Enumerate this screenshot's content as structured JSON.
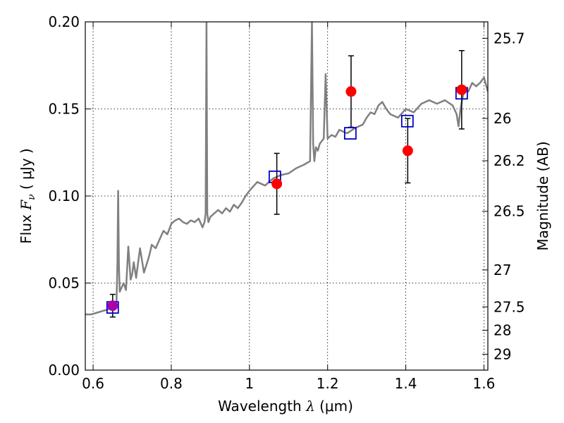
{
  "chart_data": {
    "type": "line",
    "xlabel": "Wavelength",
    "xlabel_symbol": "λ",
    "xlabel_unit": "(μm)",
    "ylabel": "Flux",
    "ylabel_symbol": "F",
    "ylabel_subscript": "ν",
    "ylabel_unit": "( μJy )",
    "y2label": "Magnitude (AB)",
    "xlim": [
      0.58,
      1.61
    ],
    "ylim": [
      0.0,
      0.2
    ],
    "grid": true,
    "x_ticks": [
      0.6,
      0.8,
      1.0,
      1.2,
      1.4,
      1.6
    ],
    "x_tick_labels": [
      "0.6",
      "0.8",
      "1",
      "1.2",
      "1.4",
      "1.6"
    ],
    "y_ticks": [
      0.0,
      0.05,
      0.1,
      0.15,
      0.2
    ],
    "y_tick_labels": [
      "0.00",
      "0.05",
      "0.10",
      "0.15",
      "0.20"
    ],
    "y2_ticks": [
      25.7,
      26,
      26.2,
      26.5,
      27,
      27.5,
      28,
      29
    ],
    "y2_tick_labels": [
      "25.7",
      "26",
      "26.2",
      "26.5",
      "27",
      "27.5",
      "28",
      "29"
    ],
    "series": [
      {
        "style": "line",
        "color": "#808080",
        "x": [
          0.58,
          0.595,
          0.61,
          0.625,
          0.64,
          0.65,
          0.655,
          0.66,
          0.662,
          0.664,
          0.666,
          0.668,
          0.672,
          0.678,
          0.684,
          0.69,
          0.696,
          0.7,
          0.704,
          0.71,
          0.72,
          0.73,
          0.74,
          0.745,
          0.75,
          0.76,
          0.77,
          0.78,
          0.79,
          0.8,
          0.81,
          0.82,
          0.83,
          0.84,
          0.85,
          0.86,
          0.87,
          0.88,
          0.885,
          0.888,
          0.89,
          0.892,
          0.895,
          0.9,
          0.91,
          0.92,
          0.93,
          0.94,
          0.95,
          0.96,
          0.97,
          0.98,
          0.99,
          1.0,
          1.02,
          1.04,
          1.06,
          1.08,
          1.1,
          1.12,
          1.14,
          1.155,
          1.16,
          1.163,
          1.166,
          1.17,
          1.175,
          1.18,
          1.19,
          1.195,
          1.2,
          1.21,
          1.22,
          1.23,
          1.25,
          1.27,
          1.29,
          1.3,
          1.31,
          1.32,
          1.33,
          1.34,
          1.35,
          1.36,
          1.38,
          1.4,
          1.42,
          1.44,
          1.46,
          1.48,
          1.5,
          1.52,
          1.53,
          1.535,
          1.54,
          1.55,
          1.56,
          1.57,
          1.58,
          1.59,
          1.6,
          1.61
        ],
        "y": [
          0.032,
          0.032,
          0.033,
          0.034,
          0.035,
          0.036,
          0.037,
          0.04,
          0.06,
          0.103,
          0.06,
          0.045,
          0.047,
          0.05,
          0.046,
          0.071,
          0.052,
          0.055,
          0.062,
          0.053,
          0.07,
          0.056,
          0.063,
          0.067,
          0.072,
          0.07,
          0.075,
          0.08,
          0.078,
          0.084,
          0.086,
          0.087,
          0.085,
          0.084,
          0.086,
          0.085,
          0.087,
          0.082,
          0.085,
          0.09,
          0.2,
          0.09,
          0.085,
          0.088,
          0.09,
          0.092,
          0.09,
          0.093,
          0.091,
          0.095,
          0.093,
          0.096,
          0.1,
          0.103,
          0.108,
          0.106,
          0.11,
          0.112,
          0.113,
          0.116,
          0.118,
          0.12,
          0.2,
          0.13,
          0.12,
          0.128,
          0.126,
          0.13,
          0.133,
          0.17,
          0.133,
          0.135,
          0.134,
          0.138,
          0.136,
          0.139,
          0.141,
          0.145,
          0.148,
          0.147,
          0.152,
          0.154,
          0.15,
          0.147,
          0.145,
          0.15,
          0.148,
          0.153,
          0.155,
          0.153,
          0.155,
          0.152,
          0.147,
          0.14,
          0.15,
          0.162,
          0.16,
          0.165,
          0.163,
          0.165,
          0.168,
          0.16
        ]
      },
      {
        "style": "scatter-square",
        "color": "#0000cc",
        "x": [
          0.65,
          1.065,
          1.258,
          1.404,
          1.543
        ],
        "y": [
          0.036,
          0.111,
          0.136,
          0.143,
          0.159
        ]
      },
      {
        "style": "scatter-circle",
        "colors": [
          "#aa00aa",
          "#ff0000",
          "#ff0000",
          "#ff0000",
          "#ff0000"
        ],
        "x": [
          0.65,
          1.07,
          1.26,
          1.405,
          1.543
        ],
        "y": [
          0.037,
          0.107,
          0.16,
          0.126,
          0.161
        ],
        "yerr": [
          0.0065,
          0.0175,
          0.0205,
          0.0185,
          0.0225
        ]
      }
    ]
  }
}
